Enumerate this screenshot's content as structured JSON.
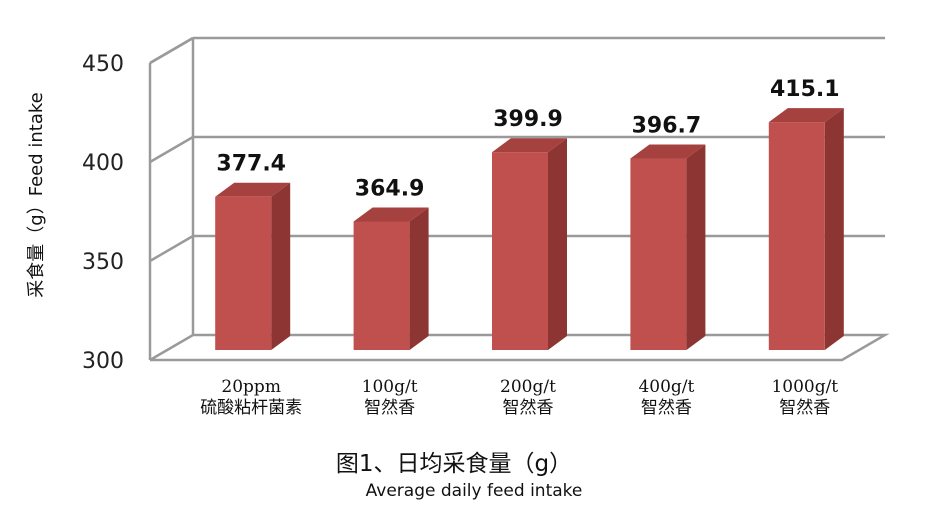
{
  "chart_data": {
    "type": "bar",
    "title": "图1、日均采食量（g）",
    "subtitle": "Average daily feed intake",
    "ylabel": "采食量（g）Feed intake",
    "xlabel": "",
    "ylim": [
      300,
      450
    ],
    "yticks": [
      300,
      350,
      400,
      450
    ],
    "grid": true,
    "legend": "none",
    "categories": [
      [
        "20ppm",
        "硫酸粘杆菌素"
      ],
      [
        "100g/t",
        "智然香"
      ],
      [
        "200g/t",
        "智然香"
      ],
      [
        "400g/t",
        "智然香"
      ],
      [
        "1000g/t",
        "智然香"
      ]
    ],
    "values": [
      377.4,
      364.9,
      399.9,
      396.7,
      415.1
    ],
    "value_labels": [
      "377.4",
      "364.9",
      "399.9",
      "396.7",
      "415.1"
    ],
    "colors": {
      "bar_front": "#c0504d",
      "bar_side": "#8c3532",
      "bar_top": "#a5413e",
      "grid": "#9a9a9a"
    }
  }
}
